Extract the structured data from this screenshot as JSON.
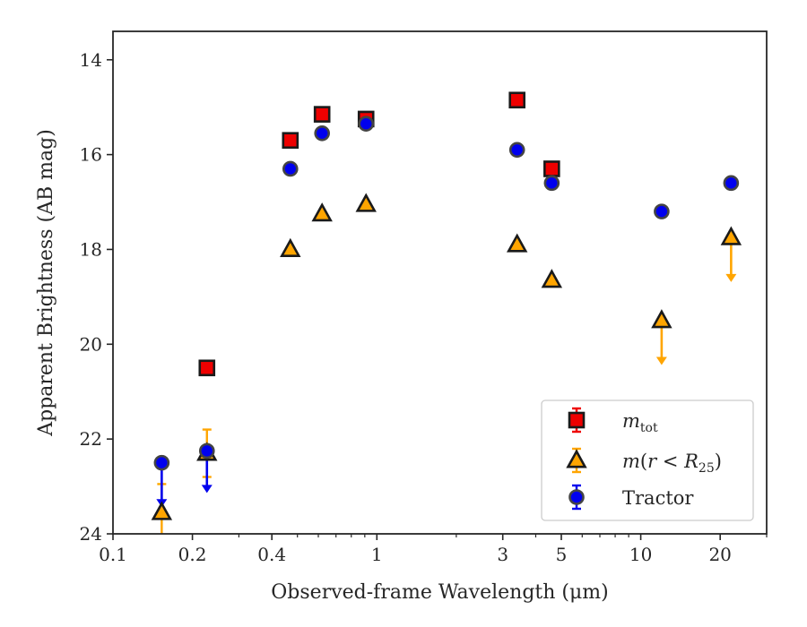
{
  "chart_data": {
    "type": "scatter",
    "xlabel": "Observed-frame Wavelength (μm)",
    "ylabel": "Apparent Brightness (AB mag)",
    "x_scale": "log",
    "xlim": [
      0.1,
      30
    ],
    "ylim": [
      24,
      13.4
    ],
    "y_inverted": true,
    "x_ticks": [
      0.1,
      0.2,
      0.4,
      1,
      3,
      5,
      10,
      20
    ],
    "x_tick_labels": [
      "0.1",
      "0.2",
      "0.4",
      "1",
      "3",
      "5",
      "10",
      "20"
    ],
    "y_ticks": [
      14,
      16,
      18,
      20,
      22,
      24
    ],
    "y_tick_labels": [
      "14",
      "16",
      "18",
      "20",
      "22",
      "24"
    ],
    "grid": false,
    "legend_position": "lower-right",
    "series": [
      {
        "key": "mtot",
        "legend_label": {
          "symbol": "m",
          "sub": "tot"
        },
        "marker": "square",
        "color": "#ee0000",
        "points": [
          {
            "x": 0.227,
            "y": 20.5
          },
          {
            "x": 0.47,
            "y": 15.7
          },
          {
            "x": 0.62,
            "y": 15.15
          },
          {
            "x": 0.91,
            "y": 15.25
          },
          {
            "x": 3.4,
            "y": 14.85
          },
          {
            "x": 4.6,
            "y": 16.3
          }
        ]
      },
      {
        "key": "mr25",
        "legend_label": {
          "symbol": "m",
          "arg": "r < R",
          "sub": "25"
        },
        "marker": "triangle",
        "color": "#ffa500",
        "points": [
          {
            "x": 0.153,
            "y": 23.55,
            "err_low": 0.6,
            "err_high": 0.6
          },
          {
            "x": 0.227,
            "y": 22.3,
            "err_low": 0.5,
            "err_high": 0.5
          },
          {
            "x": 0.47,
            "y": 18.0
          },
          {
            "x": 0.62,
            "y": 17.25
          },
          {
            "x": 0.91,
            "y": 17.05
          },
          {
            "x": 3.4,
            "y": 17.9
          },
          {
            "x": 4.6,
            "y": 18.65
          },
          {
            "x": 12.0,
            "y": 19.5,
            "upper_limit_to": 20.4
          },
          {
            "x": 22.0,
            "y": 17.75,
            "upper_limit_to": 18.65
          }
        ]
      },
      {
        "key": "tractor",
        "legend_label": {
          "text": "Tractor"
        },
        "marker": "circle",
        "color": "#0000ee",
        "points": [
          {
            "x": 0.153,
            "y": 22.5,
            "upper_limit_to": 23.4
          },
          {
            "x": 0.227,
            "y": 22.25,
            "upper_limit_to": 23.1
          },
          {
            "x": 0.47,
            "y": 16.3
          },
          {
            "x": 0.62,
            "y": 15.55
          },
          {
            "x": 0.91,
            "y": 15.35
          },
          {
            "x": 3.4,
            "y": 15.9
          },
          {
            "x": 4.6,
            "y": 16.6
          },
          {
            "x": 12.0,
            "y": 17.2
          },
          {
            "x": 22.0,
            "y": 16.6
          }
        ]
      }
    ]
  }
}
